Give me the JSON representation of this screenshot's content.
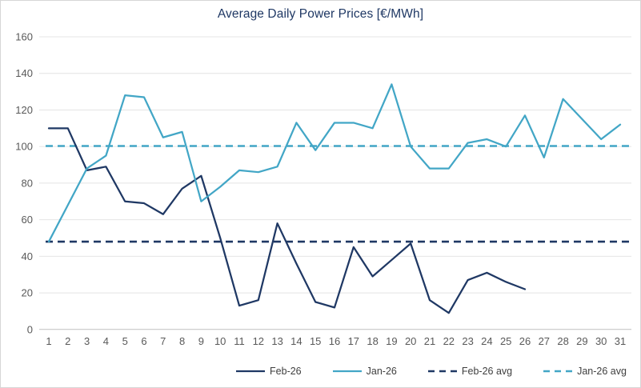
{
  "chart_data": {
    "type": "line",
    "title": "Average Daily Power Prices [€/MWh]",
    "xlabel": "",
    "ylabel": "",
    "ylim": [
      0,
      160
    ],
    "yticks": [
      0,
      20,
      40,
      60,
      80,
      100,
      120,
      140,
      160
    ],
    "xticks": [
      1,
      2,
      3,
      4,
      5,
      6,
      7,
      8,
      9,
      10,
      11,
      12,
      13,
      14,
      15,
      16,
      17,
      18,
      19,
      20,
      21,
      22,
      23,
      24,
      25,
      26,
      27,
      28,
      29,
      30,
      31
    ],
    "grid": "horizontal",
    "legend_position": "bottom",
    "colors": {
      "feb": "#1F3864",
      "jan": "#42A6C6",
      "gridline": "#E4E4E4",
      "axis": "#BFBFBF",
      "tick_text": "#595959",
      "title_text": "#1F3864"
    },
    "series": [
      {
        "name": "Feb-26",
        "style": "solid",
        "color": "#1F3864",
        "x_start": 1,
        "values": [
          110,
          110,
          87,
          89,
          70,
          69,
          63,
          77,
          84,
          50,
          13,
          16,
          58,
          36,
          15,
          12,
          45,
          29,
          38,
          47,
          16,
          9,
          27,
          31,
          26,
          22
        ]
      },
      {
        "name": "Jan-26",
        "style": "solid",
        "color": "#42A6C6",
        "x_start": 1,
        "values": [
          48,
          68,
          88,
          95,
          128,
          127,
          105,
          108,
          70,
          78,
          87,
          86,
          89,
          113,
          98,
          113,
          113,
          110,
          134,
          100,
          88,
          88,
          102,
          104,
          100,
          117,
          94,
          126,
          115,
          104,
          112
        ]
      },
      {
        "name": "Feb-26 avg",
        "style": "dashed",
        "color": "#1F3864",
        "value": 48
      },
      {
        "name": "Jan-26 avg",
        "style": "dashed",
        "color": "#42A6C6",
        "value": 100.3
      }
    ]
  }
}
